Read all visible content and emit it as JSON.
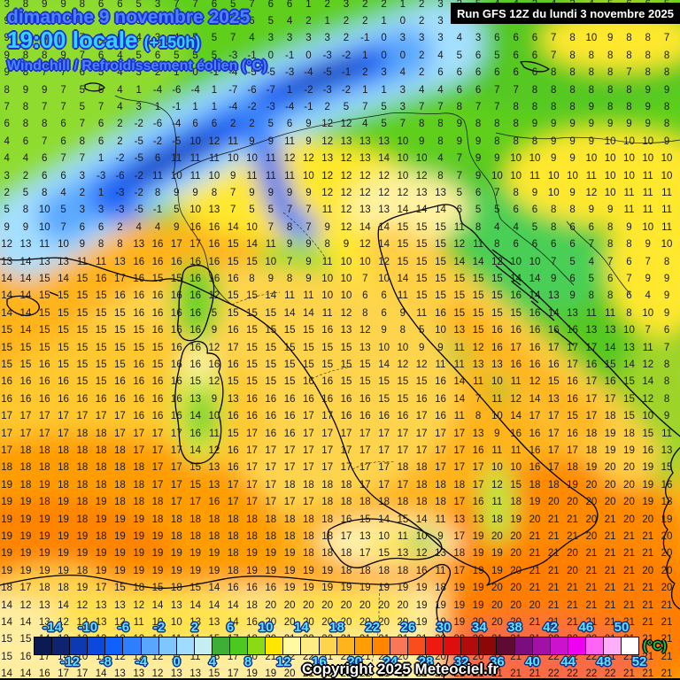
{
  "header": {
    "date_line": "dimanche 9 novembre 2025",
    "time_line": "19:00 locale",
    "offset": "(+150h)",
    "subtitle": "Windchill / Refroidissement éolien (°C)",
    "run_info": "Run GFS 12Z du lundi 3 novembre 2025"
  },
  "footer": {
    "copyright": "Copyright 2025 Meteociel.fr"
  },
  "scale": {
    "unit_label": "(°C)",
    "min": -16,
    "max": 52,
    "step": 2,
    "top_labels": [
      -14,
      -10,
      -6,
      -2,
      2,
      6,
      10,
      14,
      18,
      22,
      26,
      30,
      34,
      38,
      42,
      46,
      50
    ],
    "bottom_labels": [
      -12,
      -8,
      -4,
      0,
      4,
      8,
      12,
      16,
      20,
      24,
      28,
      32,
      36,
      40,
      44,
      48,
      52
    ],
    "colors": [
      "#0a1a52",
      "#0f2470",
      "#0d3ab2",
      "#0b48de",
      "#0e60ff",
      "#2e7ffd",
      "#58a6ff",
      "#7fc6ff",
      "#a0dcff",
      "#c4eef2",
      "#3fae37",
      "#4cc81e",
      "#8cd916",
      "#ffe600",
      "#fffaa2",
      "#ffec85",
      "#ffd44d",
      "#ffb41c",
      "#ff9d04",
      "#ff8400",
      "#f97757",
      "#fa4d1c",
      "#ee1a12",
      "#dc0e0e",
      "#b30b0b",
      "#8c0707",
      "#5e0a32",
      "#7a0e7e",
      "#a111a8",
      "#cc12cc",
      "#f000f0",
      "#ff64f5",
      "#ffaef8",
      "#ffffff"
    ]
  },
  "map": {
    "grid_rows": [
      "3 8 9 9 8 6 6 5 3 7 7 6 5 7 6 6 1 2 3 2 2 1 2 3 3 5 4 4 3 4 3 4 5 6 6 5",
      "9 8 9 9 8 7 6 5 4 6 6 6 5 6 5 4 2 1 2 2 1 0 2 3 5 5 7 8 9 7 7 8 8 8 7 7",
      "9 9 8 8 7 6 5 4 3 4 5 5 7 4 3 3 3 3 2 -1 0 3 3 3 4 3 6 6 6 7 8 10 9 8 8 7",
      "9 8 8 9 7 6 4 5 6 5 5 5 -3 -1 0 -1 0 -3 -2 1 0 0 2 4 5 6 5 6 6 7 8 8 8 8 8 8",
      "9 8 7 7 6 5 4 3 2 1 0 -1 -4 -5 -5 -3 -4 -5 -1 2 3 4 2 6 6 6 6 6 6 8 8 8 8 7 8 8",
      "8 9 9 7 5 5 4 1 -4 -6 -4 1 -7 -6 -7 1 -2 -3 -2 1 1 3 4 4 6 6 7 7 8 8 8 8 8 8 9 9",
      "7 8 7 7 5 7 4 3 1 -1 1 1 -4 -2 -3 -4 -1 2 5 7 5 3 7 7 8 7 7 8 8 8 8 9 8 8 9 8",
      "6 8 8 6 7 6 2 -2 -6 -4 6 6 2 2 5 6 9 12 12 4 5 7 8 8 9 8 8 8 9 9 9 9 9 9 9 8",
      "4 6 7 6 8 6 2 -5 -2 -5 10 12 11 9 9 11 9 12 13 13 13 10 9 8 9 9 8 8 8 9 9 9 10 10 10 9",
      "4 4 6 7 7 1 -2 -5 6 11 11 11 10 10 11 12 12 13 12 13 14 10 10 4 7 9 9 10 10 9 9 10 10 10 10 10",
      "3 2 6 6 3 -3 -6 -2 11 10 11 10 9 11 11 11 10 12 12 12 12 10 12 8 7 9 10 10 11 10 10 11 10 10 11 10",
      "2 5 8 4 2 1 -3 -2 8 9 9 8 7 9 9 9 9 12 12 12 12 12 13 13 5 6 7 8 9 10 9 12 10 11 11 11",
      "5 8 10 5 3 3 -3 -5 -1 5 10 13 7 5 5 7 7 11 12 13 13 14 14 14 6 5 5 6 6 8 8 9 9 11 11 11",
      "9 9 10 7 6 6 2 4 4 9 16 16 14 10 7 8 7 9 12 14 14 15 15 15 11 8 4 4 5 8 6 6 8 9 10 11",
      "12 13 11 10 9 8 8 13 16 17 17 16 15 14 11 9 9 8 9 12 14 15 15 15 12 11 8 6 6 6 6 7 8 8 9 10",
      "13 14 13 13 11 11 13 16 16 16 16 16 15 15 10 7 9 11 10 10 12 15 15 15 14 14 12 10 10 7 5 4 7 6 7 8",
      "14 14 15 14 15 16 17 16 15 15 16 16 16 8 9 8 9 10 10 7 10 14 15 15 15 15 15 14 14 9 6 5 6 7 9 9",
      "14 14 15 15 15 15 16 16 16 16 16 12 15 15 14 11 11 10 10 6 6 11 15 15 15 15 15 16 14 13 9 8 8 6 4 9",
      "14 14 15 15 15 15 15 16 16 16 16 5 15 15 15 14 14 11 12 8 6 9 11 16 15 15 15 15 16 14 13 11 11 8 10 9",
      "15 14 15 15 15 15 15 15 16 16 16 9 16 15 15 15 15 16 13 12 9 8 5 10 13 15 16 16 16 16 16 13 13 10 7 6",
      "15 15 15 15 15 15 15 15 15 16 16 12 17 15 15 15 15 15 15 13 10 10 9 9 11 12 16 17 16 17 17 17 14 13 11 7",
      "15 15 16 15 15 15 15 16 15 16 16 16 16 15 15 15 15 15 15 15 14 12 12 11 11 13 13 16 16 16 17 16 15 14 12 8",
      "16 16 16 16 15 15 16 16 16 16 15 12 15 15 15 15 16 16 15 15 15 15 15 16 14 11 10 11 12 15 16 17 16 15 14 8",
      "16 16 16 16 16 16 16 16 16 16 13 9 13 16 16 16 16 16 16 16 15 15 16 16 14 7 11 12 14 13 16 17 17 15 12 8",
      "17 17 17 17 17 17 17 16 16 16 14 10 16 16 16 16 17 17 16 16 16 16 17 16 11 8 10 14 17 17 15 17 18 15 10 9",
      "17 17 17 17 18 18 17 17 17 17 16 11 15 17 16 16 17 17 17 17 17 17 17 17 17 13 9 16 16 17 16 18 19 18 15 11",
      "17 18 18 18 18 18 18 17 17 17 14 12 16 17 17 17 17 17 17 17 17 17 17 17 17 16 11 11 16 17 17 18 19 19 16 13",
      "18 18 18 18 18 18 18 18 17 17 15 13 16 17 17 17 17 17 17 17 17 18 18 17 17 17 10 10 16 17 18 19 20 20 19 15",
      "19 18 19 18 18 18 18 18 17 17 15 13 17 17 17 18 18 18 18 17 17 17 18 18 18 17 12 15 18 18 19 20 20 20 19 16",
      "19 19 18 19 18 19 18 18 18 17 17 16 17 17 17 17 17 18 18 18 18 18 18 18 17 16 11 18 19 20 20 20 20 20 19 18",
      "19 19 19 19 18 19 19 19 18 18 18 18 18 18 18 18 18 18 16 15 14 15 14 11 13 13 18 19 20 21 21 20 21 20 20 19",
      "19 19 19 19 19 18 19 19 19 18 18 18 18 18 18 18 18 18 17 13 10 11 10 9 17 19 20 20 21 21 21 20 21 21 21 20",
      "19 19 19 19 19 19 19 19 19 19 19 19 18 19 19 19 18 18 18 17 15 13 12 13 18 19 19 20 21 21 20 21 21 21 21 20",
      "19 19 19 19 18 19 19 19 19 19 19 19 18 19 19 19 19 19 18 18 18 18 16 11 17 19 19 20 21 21 20 21 21 21 20 20",
      "18 17 18 18 19 17 15 18 15 18 15 14 16 16 16 19 19 19 19 19 19 19 19 18 19 19 20 20 21 21 21 21 21 21 21 20",
      "14 12 13 14 12 13 13 12 14 13 14 14 14 18 20 20 20 20 20 20 20 20 19 19 19 19 20 20 20 21 21 21 21 21 21 21",
      "14 14 13 12 12 13 12 11 10 10 13 13 14 16 20 20 20 20 20 20 20 20 19 19 19 20 20 20 21 21 21 21 21 21 21 21",
      "15 15 14 12 12 13 12 12 12 11 11 15 17 18 20 21 22 22 21 21 21 21 21 20 20 20 21 21 21 22 22 22 21 21 21 21",
      "15 16 17 14 10 11 12 12 12 11 11 15 17 20 21 22 22 21 21 21 21 20 20 20 20 20 21 21 21 22 22 22 21 21 21 21",
      "14 14 16 17 17 14 13 13 12 13 13 15 17 19 19 20 21 22 21 21 21 21 22 22 21 21 21 21 21 22 22 22 22 21 21 21"
    ]
  }
}
